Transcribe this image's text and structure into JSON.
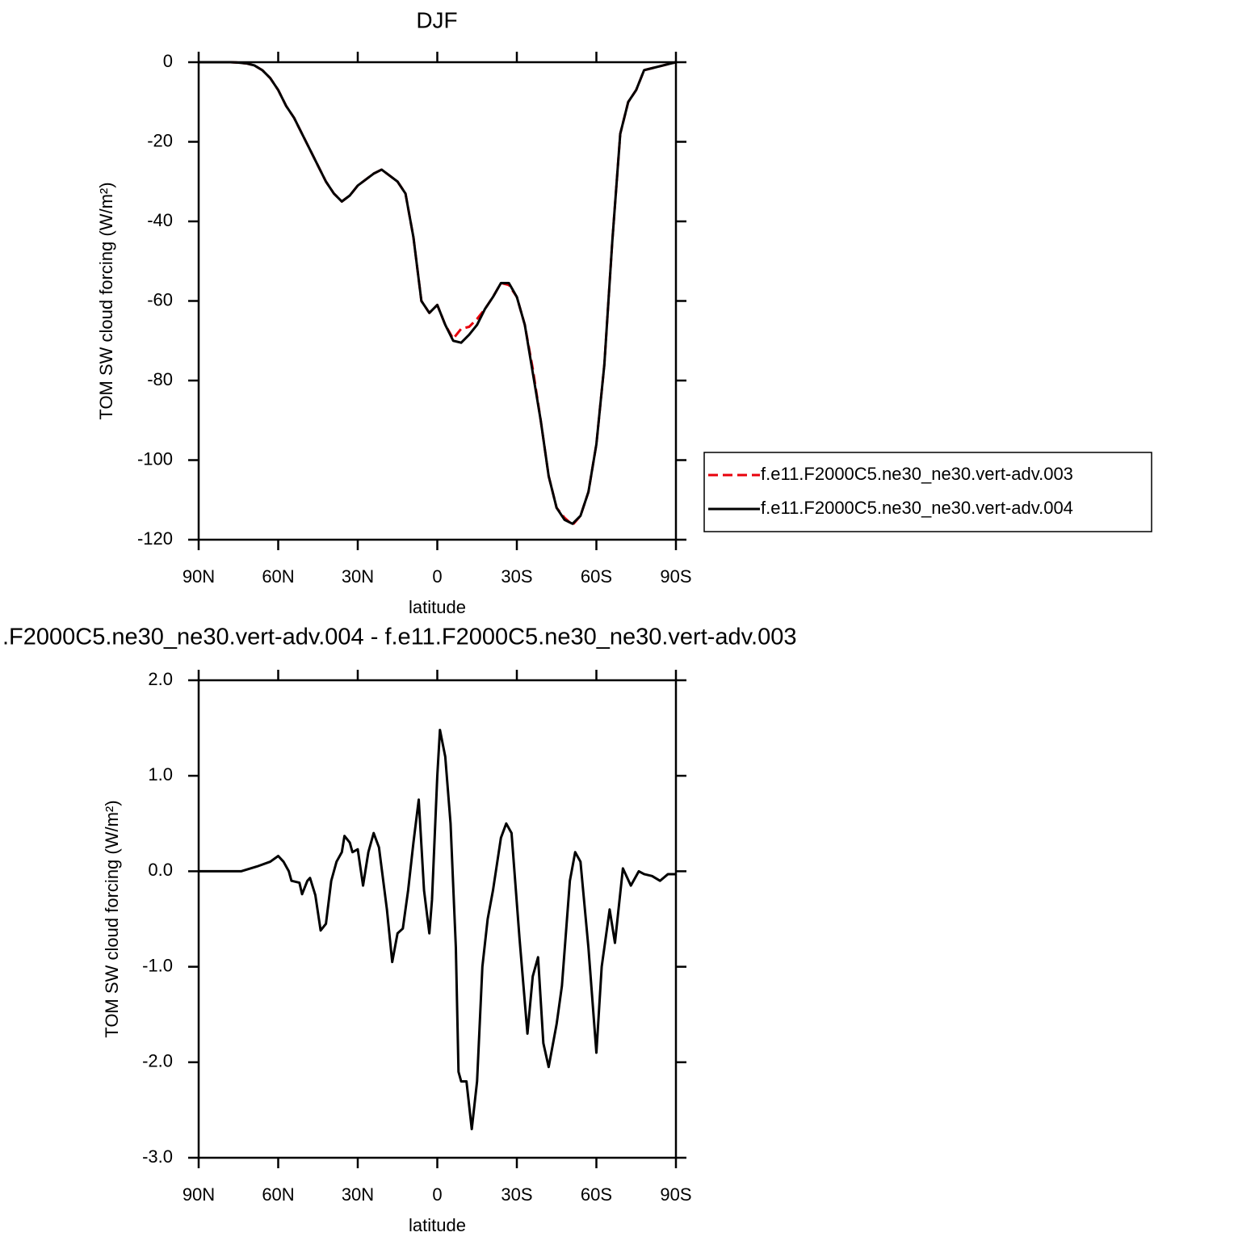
{
  "chart_data": [
    {
      "type": "line",
      "title": "DJF",
      "xlabel": "latitude",
      "ylabel": "TOM SW cloud forcing (W/m²)",
      "x": [
        90,
        87,
        84,
        81,
        78,
        75,
        72,
        69,
        66,
        63,
        60,
        57,
        54,
        51,
        48,
        45,
        42,
        39,
        36,
        33,
        30,
        27,
        24,
        21,
        18,
        15,
        12,
        9,
        6,
        3,
        0,
        -3,
        -6,
        -9,
        -12,
        -15,
        -18,
        -21,
        -24,
        -27,
        -30,
        -33,
        -36,
        -39,
        -42,
        -45,
        -48,
        -51,
        -54,
        -57,
        -60,
        -63,
        -66,
        -69,
        -72,
        -75,
        -78,
        -81,
        -84,
        -87,
        -90
      ],
      "series": [
        {
          "name": "f.e11.F2000C5.ne30_ne30.vert-adv.003",
          "color": "#e8000b",
          "style": "dashed",
          "values": [
            0,
            0,
            0,
            0,
            0,
            -0.1,
            -0.3,
            -0.8,
            -2,
            -4,
            -7,
            -11,
            -14,
            -18,
            -22,
            -26,
            -30,
            -33,
            -35,
            -33.5,
            -31,
            -29.5,
            -28,
            -27,
            -28.5,
            -30,
            -33,
            -44,
            -60,
            -63,
            -61,
            -66,
            -69.5,
            -67,
            -66.5,
            -64.5,
            -62,
            -59,
            -55.5,
            -56,
            -59,
            -66,
            -77,
            -90,
            -104,
            -112,
            -114.5,
            -116.3,
            -114,
            -108,
            -96,
            -76,
            -45,
            -18,
            -10,
            -7,
            -2,
            -1.5,
            -1,
            -0.5,
            0
          ]
        },
        {
          "name": "f.e11.F2000C5.ne30_ne30.vert-adv.004",
          "color": "#000000",
          "style": "solid",
          "values": [
            0,
            0,
            0,
            0,
            0,
            -0.1,
            -0.3,
            -0.8,
            -2,
            -4,
            -7,
            -11,
            -14,
            -18,
            -22,
            -26,
            -30,
            -33,
            -35,
            -33.5,
            -31,
            -29.5,
            -28,
            -27,
            -28.5,
            -30,
            -33,
            -44,
            -60,
            -63,
            -61,
            -66,
            -70,
            -70.5,
            -68.5,
            -66,
            -62,
            -59,
            -55.5,
            -55.5,
            -59,
            -66,
            -78,
            -90,
            -104,
            -112,
            -115,
            -116,
            -114,
            -108,
            -96,
            -76,
            -45,
            -18,
            -10,
            -7,
            -2,
            -1.5,
            -1,
            -0.5,
            0
          ]
        }
      ],
      "xlim": [
        90,
        -90
      ],
      "xticks": [
        {
          "value": 90,
          "label": "90N"
        },
        {
          "value": 60,
          "label": "60N"
        },
        {
          "value": 30,
          "label": "30N"
        },
        0,
        {
          "value": -30,
          "label": "30S"
        },
        {
          "value": -60,
          "label": "60S"
        },
        {
          "value": -90,
          "label": "90S"
        }
      ],
      "ylim": [
        -120,
        0
      ],
      "yticks": [
        0,
        -20,
        -40,
        -60,
        -80,
        -100,
        -120
      ],
      "legend": "right"
    },
    {
      "type": "line",
      "title": ".F2000C5.ne30_ne30.vert-adv.004 - f.e11.F2000C5.ne30_ne30.vert-adv.003",
      "xlabel": "latitude",
      "ylabel": "TOM SW cloud forcing (W/m²)",
      "x": [
        90,
        80,
        74,
        68,
        63,
        60,
        58,
        56,
        55,
        52,
        51,
        49,
        48,
        46,
        44,
        42,
        40,
        38,
        36,
        35,
        33,
        32,
        30,
        28,
        26,
        24,
        22,
        19,
        17,
        15,
        13,
        11,
        9,
        7,
        5,
        3,
        2,
        0,
        -1,
        -3,
        -5,
        -7,
        -8,
        -9,
        -11,
        -13,
        -15,
        -17,
        -19,
        -21,
        -24,
        -26,
        -28,
        -31,
        -34,
        -36,
        -38,
        -40,
        -42,
        -45,
        -47,
        -50,
        -52,
        -54,
        -57,
        -60,
        -62,
        -65,
        -67,
        -70,
        -73,
        -76,
        -78,
        -81,
        -84,
        -87,
        -90
      ],
      "values": [
        0,
        0,
        0,
        0.05,
        0.1,
        0.16,
        0.1,
        0,
        -0.1,
        -0.12,
        -0.24,
        -0.1,
        -0.07,
        -0.25,
        -0.62,
        -0.55,
        -0.1,
        0.1,
        0.2,
        0.37,
        0.3,
        0.2,
        0.23,
        -0.15,
        0.2,
        0.4,
        0.25,
        -0.4,
        -0.95,
        -0.65,
        -0.6,
        -0.2,
        0.3,
        0.75,
        -0.2,
        -0.65,
        -0.3,
        1.0,
        1.48,
        1.2,
        0.5,
        -0.8,
        -2.1,
        -2.2,
        -2.2,
        -2.7,
        -2.2,
        -1.0,
        -0.5,
        -0.2,
        0.35,
        0.5,
        0.4,
        -0.7,
        -1.7,
        -1.1,
        -0.9,
        -1.8,
        -2.05,
        -1.6,
        -1.2,
        -0.1,
        0.2,
        0.1,
        -0.8,
        -1.9,
        -1.0,
        -0.4,
        -0.75,
        0.03,
        -0.15,
        0,
        -0.03,
        -0.05,
        -0.1,
        -0.03,
        -0.03
      ],
      "color": "#000000",
      "xlim": [
        90,
        -90
      ],
      "xticks": [
        {
          "value": 90,
          "label": "90N"
        },
        {
          "value": 60,
          "label": "60N"
        },
        {
          "value": 30,
          "label": "30N"
        },
        0,
        {
          "value": -30,
          "label": "30S"
        },
        {
          "value": -60,
          "label": "60S"
        },
        {
          "value": -90,
          "label": "90S"
        }
      ],
      "ylim": [
        -3,
        2
      ],
      "yticks": [
        {
          "value": 2,
          "label": "2.0"
        },
        {
          "value": 1,
          "label": "1.0"
        },
        {
          "value": 0,
          "label": "0.0"
        },
        {
          "value": -1,
          "label": "-1.0"
        },
        {
          "value": -2,
          "label": "-2.0"
        },
        {
          "value": -3,
          "label": "-3.0"
        }
      ]
    }
  ]
}
